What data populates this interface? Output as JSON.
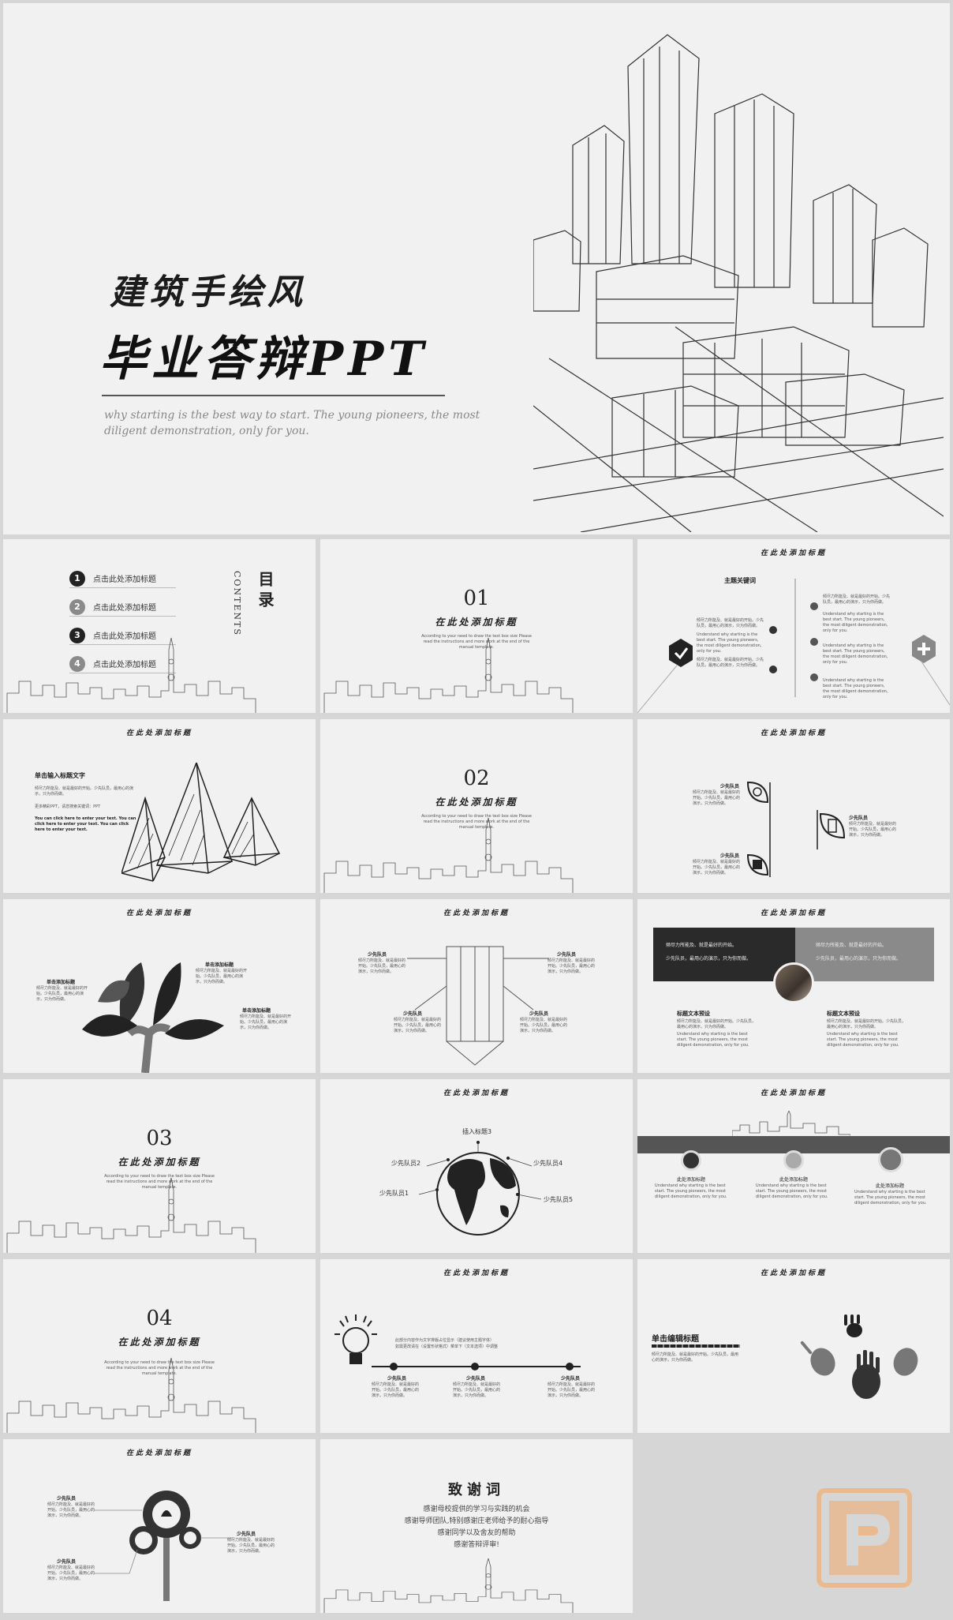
{
  "cover": {
    "title_top": "建筑手绘风",
    "title_main": "毕业答辩PPT",
    "subtitle_line1": "why starting is the best way to start. The young pioneers, the most",
    "subtitle_line2": "diligent demonstration, only for you."
  },
  "slide_title": "在此处添加标题",
  "toc": {
    "heading": "目录",
    "side_label": "CONTENTS",
    "items": [
      {
        "num": "1",
        "label": "点击此处添加标题"
      },
      {
        "num": "2",
        "label": "点击此处添加标题"
      },
      {
        "num": "3",
        "label": "点击此处添加标题"
      },
      {
        "num": "4",
        "label": "点击此处添加标题"
      }
    ]
  },
  "sections": [
    {
      "num": "01"
    },
    {
      "num": "02"
    },
    {
      "num": "03"
    },
    {
      "num": "04"
    }
  ],
  "section_desc": "According to your need to draw the text box size Please read the instructions and more work at the end of the manual template.",
  "keyword_slide": {
    "heading": "主题关键词",
    "body_cn": "倾尽力所能及、就是最好的开始。少先队员，最用心的演示，只为你而做。",
    "body_en": "Understand why starting is the best start. The young pioneers, the most diligent demonstration, only for you."
  },
  "mountain_slide": {
    "heading": "单击输入标题文字",
    "body_cn": "倾尽力所能及、就是最好的开始。少先队员，最用心的演示，只为你而做。",
    "body_cn2": "更多精彩PPT，请您搜索关键词：PPT",
    "body_en": "You can click here to enter your text. You can click here to enter your text. You can click here to enter your text."
  },
  "member_label": "少先队员",
  "member_body": "倾尽力所能及、就是最好的开始。少先队员，最用心的演示，只为你而做。",
  "tree_slide": {
    "label": "单击添加标题"
  },
  "photo_slide": {
    "box_text1": "倾尽力所能及、就是最好的开始。",
    "box_text2": "少先队员，最用心的演示，只为你而做。",
    "label_left": "标题文本预设",
    "label_right": "标题文本预设"
  },
  "globe_slide": {
    "top": "插入标题3",
    "l2": "少先队员2",
    "l1": "少先队员1",
    "r4": "少先队员4",
    "r5": "少先队员5"
  },
  "banner_slide": {
    "col_titles": [
      "此处添加标题",
      "此处添加标题",
      "此处添加标题"
    ]
  },
  "bulb_slide": {
    "line1": "此部分内容作为文字排版占位显示（建议使用主题字体）",
    "line2": "如需更改请在（设置形状格式）菜单下（文本选项）中调整"
  },
  "hand_slide": {
    "heading": "单击编辑标题",
    "body": "倾尽力所能及、就是最好的开始。少先队员，最用心的演示，只为你而做。"
  },
  "thanks": {
    "title": "致谢词",
    "lines": [
      "感谢母校提供的学习与实践的机会",
      "感谢导师团队,特别感谢庄老师给予的耐心指导",
      "感谢同学以及舍友的帮助",
      "感谢答辩评审!"
    ]
  },
  "colors": {
    "dark": "#2a2a2a",
    "mid": "#8a8a8a",
    "paper": "#f1f1f1",
    "logo": "#e9b98f"
  }
}
